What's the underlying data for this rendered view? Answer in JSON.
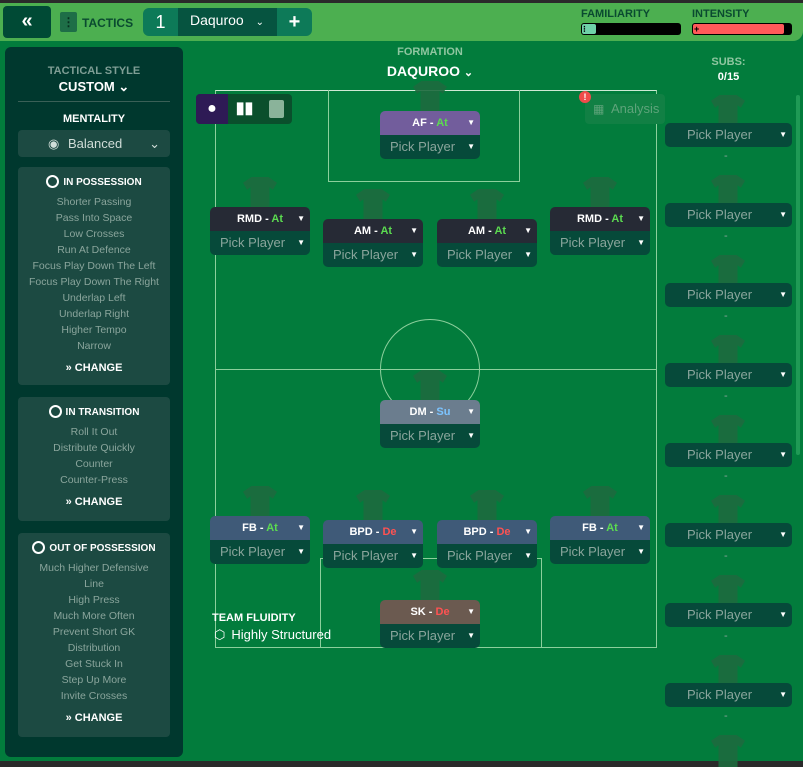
{
  "header": {
    "back_icon": "double-chevron-left-icon",
    "tactics_label": "TACTICS",
    "tab_number": "1",
    "tab_name": "Daquroo",
    "add_label": "+",
    "familiarity_label": "FAMILIARITY",
    "familiarity_level": 0.05,
    "intensity_label": "INTENSITY",
    "intensity_level": 0.92,
    "familiarity_color": "#6fd1a8",
    "intensity_color": "#ff5a5a"
  },
  "sidebar": {
    "tactical_style_label": "TACTICAL STYLE",
    "tactical_style_value": "CUSTOM",
    "mentality_label": "MENTALITY",
    "mentality_value": "Balanced",
    "sections": [
      {
        "title": "IN POSSESSION",
        "items": [
          "Shorter Passing",
          "Pass Into Space",
          "Low Crosses",
          "Run At Defence",
          "Focus Play Down The Left",
          "Focus Play Down The Right",
          "Underlap Left",
          "Underlap Right",
          "Higher Tempo",
          "Narrow"
        ],
        "change": "CHANGE"
      },
      {
        "title": "IN TRANSITION",
        "items": [
          "Roll It Out",
          "Distribute Quickly",
          "Counter",
          "Counter-Press"
        ],
        "change": "CHANGE"
      },
      {
        "title": "OUT OF POSSESSION",
        "items": [
          "Much Higher Defensive",
          "Line",
          "High Press",
          "Much More Often",
          "Prevent Short GK",
          "Distribution",
          "Get Stuck In",
          "Step Up More",
          "Invite Crosses"
        ],
        "change": "CHANGE"
      }
    ]
  },
  "formation": {
    "label": "FORMATION",
    "name": "DAQUROO",
    "analysis": "Analysis",
    "fluidity_label": "TEAM FLUIDITY",
    "fluidity_value": "Highly Structured",
    "players": [
      {
        "role": "AF",
        "duty": "At",
        "pick": "Pick Player"
      },
      {
        "role": "RMD",
        "duty": "At",
        "pick": "Pick Player"
      },
      {
        "role": "AM",
        "duty": "At",
        "pick": "Pick Player"
      },
      {
        "role": "AM",
        "duty": "At",
        "pick": "Pick Player"
      },
      {
        "role": "RMD",
        "duty": "At",
        "pick": "Pick Player"
      },
      {
        "role": "DM",
        "duty": "Su",
        "pick": "Pick Player"
      },
      {
        "role": "FB",
        "duty": "At",
        "pick": "Pick Player"
      },
      {
        "role": "BPD",
        "duty": "De",
        "pick": "Pick Player"
      },
      {
        "role": "BPD",
        "duty": "De",
        "pick": "Pick Player"
      },
      {
        "role": "FB",
        "duty": "At",
        "pick": "Pick Player"
      },
      {
        "role": "SK",
        "duty": "De",
        "pick": "Pick Player"
      }
    ]
  },
  "subs": {
    "label": "SUBS:",
    "count": "0/15",
    "pick": "Pick Player",
    "dash": "-"
  }
}
